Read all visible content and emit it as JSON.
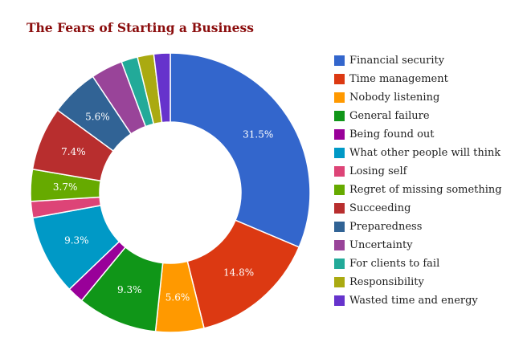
{
  "chart_data": {
    "type": "pie",
    "title": "The Fears of Starting a Business",
    "legend_position": "right",
    "categories": [
      "Financial security",
      "Time management",
      "Nobody listening",
      "General failure",
      "Being found out",
      "What other people will think",
      "Losing self",
      "Regret of missing something",
      "Succeeding",
      "Preparedness",
      "Uncertainty",
      "For clients to fail",
      "Responsibility",
      "Wasted time and energy"
    ],
    "values": [
      31.5,
      14.8,
      5.6,
      9.3,
      1.9,
      9.3,
      1.9,
      3.7,
      7.4,
      5.6,
      3.7,
      1.9,
      1.9,
      1.9
    ],
    "data_labels": [
      "31.5%",
      "14.8%",
      "5.6%",
      "9.3%",
      "",
      "9.3%",
      "",
      "3.7%",
      "7.4%",
      "5.6%",
      "",
      "",
      "",
      ""
    ],
    "colors": [
      "#3366cc",
      "#dc3912",
      "#ff9900",
      "#109618",
      "#990099",
      "#0099c6",
      "#dd4477",
      "#66aa00",
      "#b82e2e",
      "#316395",
      "#994499",
      "#22aa99",
      "#aaaa11",
      "#6633cc"
    ]
  }
}
